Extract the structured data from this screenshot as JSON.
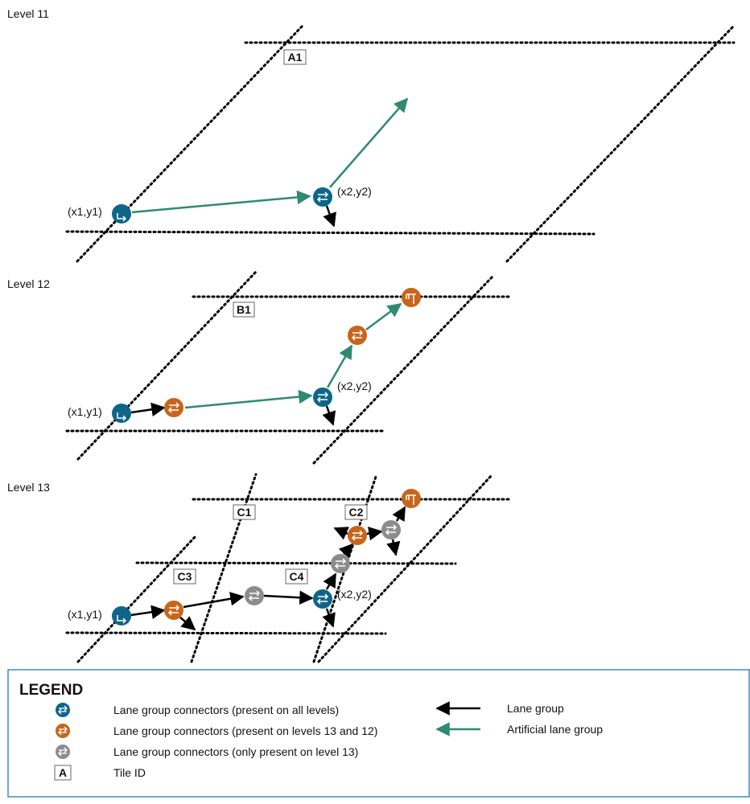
{
  "colors": {
    "all_levels": "#0d6689",
    "levels_13_12": "#c8651b",
    "level_13_only": "#8c8c8c",
    "lane_group": "#000000",
    "artificial_lane_group": "#2e8a72",
    "legend_border": "#3b8fc0"
  },
  "levels": [
    {
      "label": "Level 11",
      "tiles": [
        "A1"
      ],
      "coord_labels": [
        "(x1,y1)",
        "(x2,y2)"
      ]
    },
    {
      "label": "Level 12",
      "tiles": [
        "B1"
      ],
      "coord_labels": [
        "(x1,y1)",
        "(x2,y2)"
      ]
    },
    {
      "label": "Level 13",
      "tiles": [
        "C1",
        "C2",
        "C3",
        "C4"
      ],
      "coord_labels": [
        "(x1,y1)",
        "(x2,y2)"
      ]
    }
  ],
  "legend": {
    "title": "LEGEND",
    "items": [
      {
        "icon": "connector-all-levels-icon",
        "label": "Lane group connectors (present on all levels)"
      },
      {
        "icon": "connector-levels-13-12-icon",
        "label": "Lane group connectors (present on levels 13 and 12)"
      },
      {
        "icon": "connector-level-13-only-icon",
        "label": "Lane group connectors (only present on level 13)"
      },
      {
        "icon": "tile-id-box-icon",
        "label": "Tile ID",
        "box_text": "A"
      }
    ],
    "arrows": [
      {
        "icon": "lane-group-arrow-icon",
        "label": "Lane group"
      },
      {
        "icon": "artificial-lane-group-arrow-icon",
        "label": "Artificial lane group"
      }
    ]
  }
}
